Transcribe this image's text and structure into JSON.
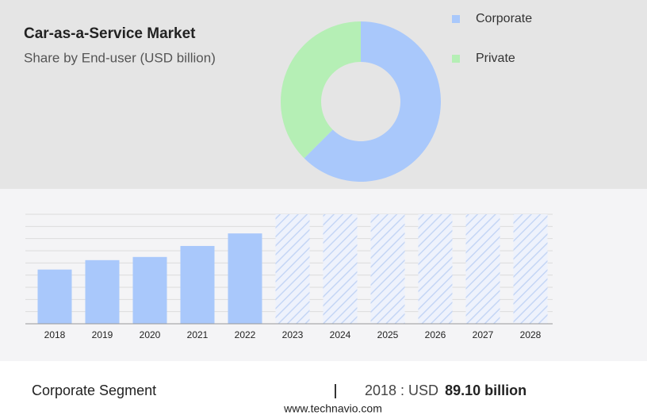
{
  "chart_data": [
    {
      "type": "donut",
      "title": "Car-as-a-Service Market",
      "subtitle": "Share by End-user (USD billion)",
      "categories": [
        "Corporate",
        "Private"
      ],
      "values": [
        62.5,
        37.5
      ],
      "colors": [
        "#a9c8fb",
        "#b5efb5"
      ]
    },
    {
      "type": "bar",
      "categories": [
        "2018",
        "2019",
        "2020",
        "2021",
        "2022",
        "2023",
        "2024",
        "2025",
        "2026",
        "2027",
        "2028"
      ],
      "values": [
        89.1,
        104.6,
        109.8,
        127.9,
        148.5,
        null,
        null,
        null,
        null,
        null,
        null
      ],
      "color": "#a9c8fb",
      "ylim": [
        0,
        180
      ],
      "yticks": [
        0,
        20,
        40,
        60,
        80,
        100,
        120,
        140,
        160,
        180
      ],
      "grid": true
    }
  ],
  "footer": {
    "segment": "Corporate Segment",
    "year_currency": "2018 : USD",
    "value": "89.10 billion",
    "website": "www.technavio.com"
  }
}
